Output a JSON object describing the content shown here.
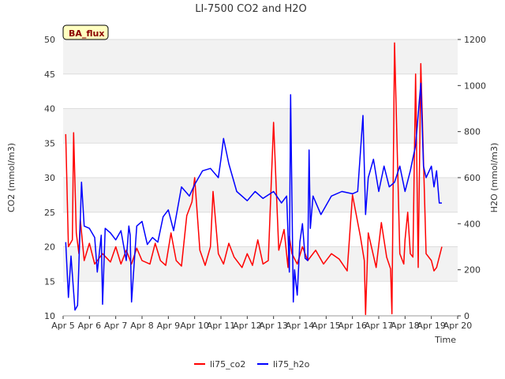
{
  "chart_data": {
    "type": "line",
    "title": "LI-7500 CO2 and H2O",
    "xlabel": "Time",
    "ylabel_left": "CO2 (mmol/m3)",
    "ylabel_right": "H2O (mmol/m3)",
    "ylim_left": [
      10,
      50
    ],
    "ylim_right": [
      0,
      1200
    ],
    "left_ticks": [
      10,
      15,
      20,
      25,
      30,
      35,
      40,
      45,
      50
    ],
    "right_ticks": [
      0,
      200,
      400,
      600,
      800,
      1000,
      1200
    ],
    "x_ticks": [
      "Apr 5",
      "Apr 6",
      "Apr 7",
      "Apr 8",
      "Apr 9",
      "Apr 10",
      "Apr 11",
      "Apr 12",
      "Apr 13",
      "Apr 14",
      "Apr 15",
      "Apr 16",
      "Apr 17",
      "Apr 18",
      "Apr 19",
      "Apr 20"
    ],
    "x_start": "2024-04-05",
    "grid": true,
    "legend_position": "bottom",
    "annotation": "BA_flux",
    "series": [
      {
        "name": "li75_co2",
        "axis": "left",
        "color": "#ff0000",
        "x": [
          0.1,
          0.2,
          0.35,
          0.4,
          0.5,
          0.6,
          0.65,
          0.8,
          1.0,
          1.2,
          1.5,
          1.8,
          2.0,
          2.2,
          2.4,
          2.6,
          2.8,
          3.0,
          3.3,
          3.5,
          3.7,
          3.9,
          4.1,
          4.3,
          4.5,
          4.7,
          4.9,
          5.0,
          5.2,
          5.4,
          5.6,
          5.7,
          5.9,
          6.1,
          6.3,
          6.5,
          6.8,
          7.0,
          7.2,
          7.4,
          7.6,
          7.8,
          8.0,
          8.2,
          8.4,
          8.55,
          8.6,
          8.7,
          8.9,
          9.1,
          9.3,
          9.6,
          9.9,
          10.2,
          10.5,
          10.8,
          11.0,
          11.3,
          11.45,
          11.5,
          11.6,
          11.9,
          12.1,
          12.3,
          12.45,
          12.5,
          12.6,
          12.8,
          12.95,
          13.0,
          13.1,
          13.2,
          13.3,
          13.4,
          13.5,
          13.6,
          13.8,
          14.0,
          14.1,
          14.2,
          14.4
        ],
        "values": [
          36.3,
          20.0,
          21.0,
          36.5,
          22.0,
          19.0,
          24.0,
          18.0,
          20.5,
          17.5,
          19.0,
          17.8,
          20.0,
          17.5,
          19.5,
          17.5,
          19.8,
          18.0,
          17.5,
          20.5,
          18.0,
          17.3,
          22.0,
          18.0,
          17.2,
          24.5,
          26.5,
          30.0,
          19.5,
          17.3,
          20.0,
          28.0,
          19.0,
          17.5,
          20.5,
          18.5,
          17.0,
          19.0,
          17.3,
          21.0,
          17.5,
          18.0,
          38.0,
          19.5,
          22.5,
          17.0,
          21.5,
          19.0,
          17.5,
          20.0,
          18.0,
          19.5,
          17.5,
          19.0,
          18.2,
          16.5,
          27.5,
          21.5,
          18.0,
          10.2,
          22.0,
          17.0,
          23.5,
          18.5,
          16.8,
          10.3,
          49.5,
          19.0,
          17.5,
          21.0,
          25.0,
          19.0,
          18.5,
          45.0,
          17.0,
          46.5,
          19.0,
          18.0,
          16.5,
          17.0,
          20.0
        ]
      },
      {
        "name": "li75_h2o",
        "axis": "right",
        "color": "#0000ff",
        "x": [
          0.1,
          0.2,
          0.3,
          0.45,
          0.55,
          0.7,
          0.8,
          1.0,
          1.2,
          1.3,
          1.45,
          1.5,
          1.6,
          1.8,
          2.0,
          2.2,
          2.4,
          2.5,
          2.55,
          2.6,
          2.8,
          3.0,
          3.2,
          3.4,
          3.6,
          3.8,
          4.0,
          4.2,
          4.5,
          4.8,
          5.0,
          5.3,
          5.6,
          5.9,
          6.0,
          6.1,
          6.3,
          6.6,
          7.0,
          7.3,
          7.6,
          8.0,
          8.3,
          8.5,
          8.6,
          8.65,
          8.7,
          8.75,
          8.8,
          8.9,
          9.0,
          9.1,
          9.2,
          9.3,
          9.35,
          9.4,
          9.5,
          9.8,
          10.2,
          10.6,
          11.0,
          11.2,
          11.4,
          11.5,
          11.6,
          11.8,
          12.0,
          12.2,
          12.4,
          12.6,
          12.8,
          13.0,
          13.2,
          13.4,
          13.6,
          13.7,
          13.8,
          14.0,
          14.1,
          14.2,
          14.3,
          14.4
        ],
        "values": [
          320,
          80,
          260,
          25,
          45,
          580,
          390,
          380,
          340,
          190,
          350,
          50,
          380,
          360,
          330,
          370,
          240,
          390,
          350,
          60,
          390,
          410,
          310,
          340,
          320,
          430,
          460,
          370,
          560,
          520,
          570,
          630,
          640,
          600,
          680,
          770,
          660,
          540,
          500,
          540,
          510,
          540,
          490,
          520,
          190,
          960,
          500,
          60,
          200,
          90,
          320,
          400,
          250,
          240,
          720,
          380,
          520,
          440,
          520,
          540,
          530,
          540,
          870,
          440,
          600,
          680,
          540,
          650,
          560,
          580,
          650,
          540,
          630,
          740,
          1010,
          650,
          600,
          650,
          560,
          630,
          490,
          490
        ]
      }
    ]
  },
  "legend": {
    "co2_label": "li75_co2",
    "h2o_label": "li75_h2o"
  }
}
